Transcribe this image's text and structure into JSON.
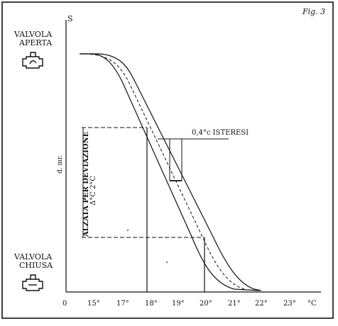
{
  "figure_label": "Fig. 3",
  "open_label": [
    "VALVOLA",
    "APERTA"
  ],
  "closed_label": [
    "VALVOLA",
    "CHIUSA"
  ],
  "y_axis_top_label": "S",
  "y_axis_label": "d. mr.",
  "x_axis_unit": "°C",
  "x_ticks": [
    "0",
    "15°",
    "17°",
    "18°",
    "19°",
    "20°",
    "21°",
    "22°",
    "23°"
  ],
  "vertical_annotation_1": "ALZATA PER DEVIAZIONE",
  "vertical_annotation_2": "Δ°C 2°C",
  "hysteresis_label": "0,4°c ISTERESI",
  "icons": {
    "open_valve": "valve-open-icon",
    "closed_valve": "valve-closed-icon"
  }
}
